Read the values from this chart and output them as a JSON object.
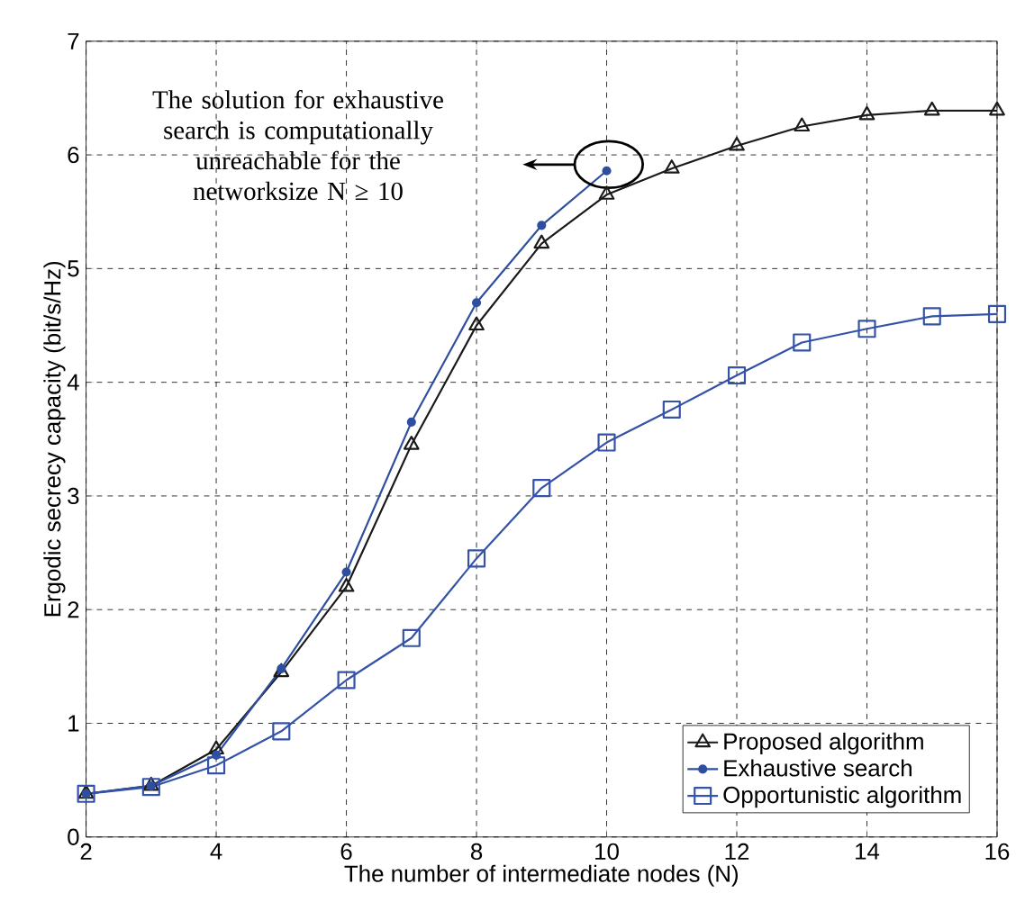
{
  "chart_data": {
    "type": "line",
    "xlabel": "The number of intermediate nodes (N)",
    "ylabel": "Ergodic secrecy  capacity (bit/s/Hz)",
    "x": [
      2,
      3,
      4,
      5,
      6,
      7,
      8,
      9,
      10,
      11,
      12,
      13,
      14,
      15,
      16
    ],
    "series": [
      {
        "name": "Proposed algorithm",
        "color": "#1a1a1a",
        "marker": "triangle",
        "values": [
          0.38,
          0.45,
          0.77,
          1.45,
          2.2,
          3.45,
          4.5,
          5.22,
          5.65,
          5.88,
          6.08,
          6.25,
          6.35,
          6.39,
          6.39
        ]
      },
      {
        "name": "Exhaustive search",
        "color": "#2e4fa0",
        "marker": "circle",
        "x": [
          2,
          3,
          4,
          5,
          6,
          7,
          8,
          9,
          10
        ],
        "values": [
          0.38,
          0.45,
          0.72,
          1.48,
          2.33,
          3.65,
          4.7,
          5.38,
          5.86
        ]
      },
      {
        "name": "Opportunistic algorithm",
        "color": "#3352a8",
        "marker": "square",
        "values": [
          0.38,
          0.44,
          0.63,
          0.93,
          1.38,
          1.75,
          2.45,
          3.07,
          3.47,
          3.76,
          4.06,
          4.35,
          4.47,
          4.58,
          4.6
        ]
      }
    ],
    "annotations": [
      "The solution for exhaustive search is computationally unreachable for the networksize N ≥ 10"
    ],
    "xlim": [
      2,
      16
    ],
    "ylim": [
      0,
      7
    ],
    "xticks": [
      2,
      4,
      6,
      8,
      10,
      12,
      14,
      16
    ],
    "yticks": [
      0,
      1,
      2,
      3,
      4,
      5,
      6,
      7
    ],
    "grid": true,
    "legend": "bottom right",
    "line_style": "solid"
  }
}
